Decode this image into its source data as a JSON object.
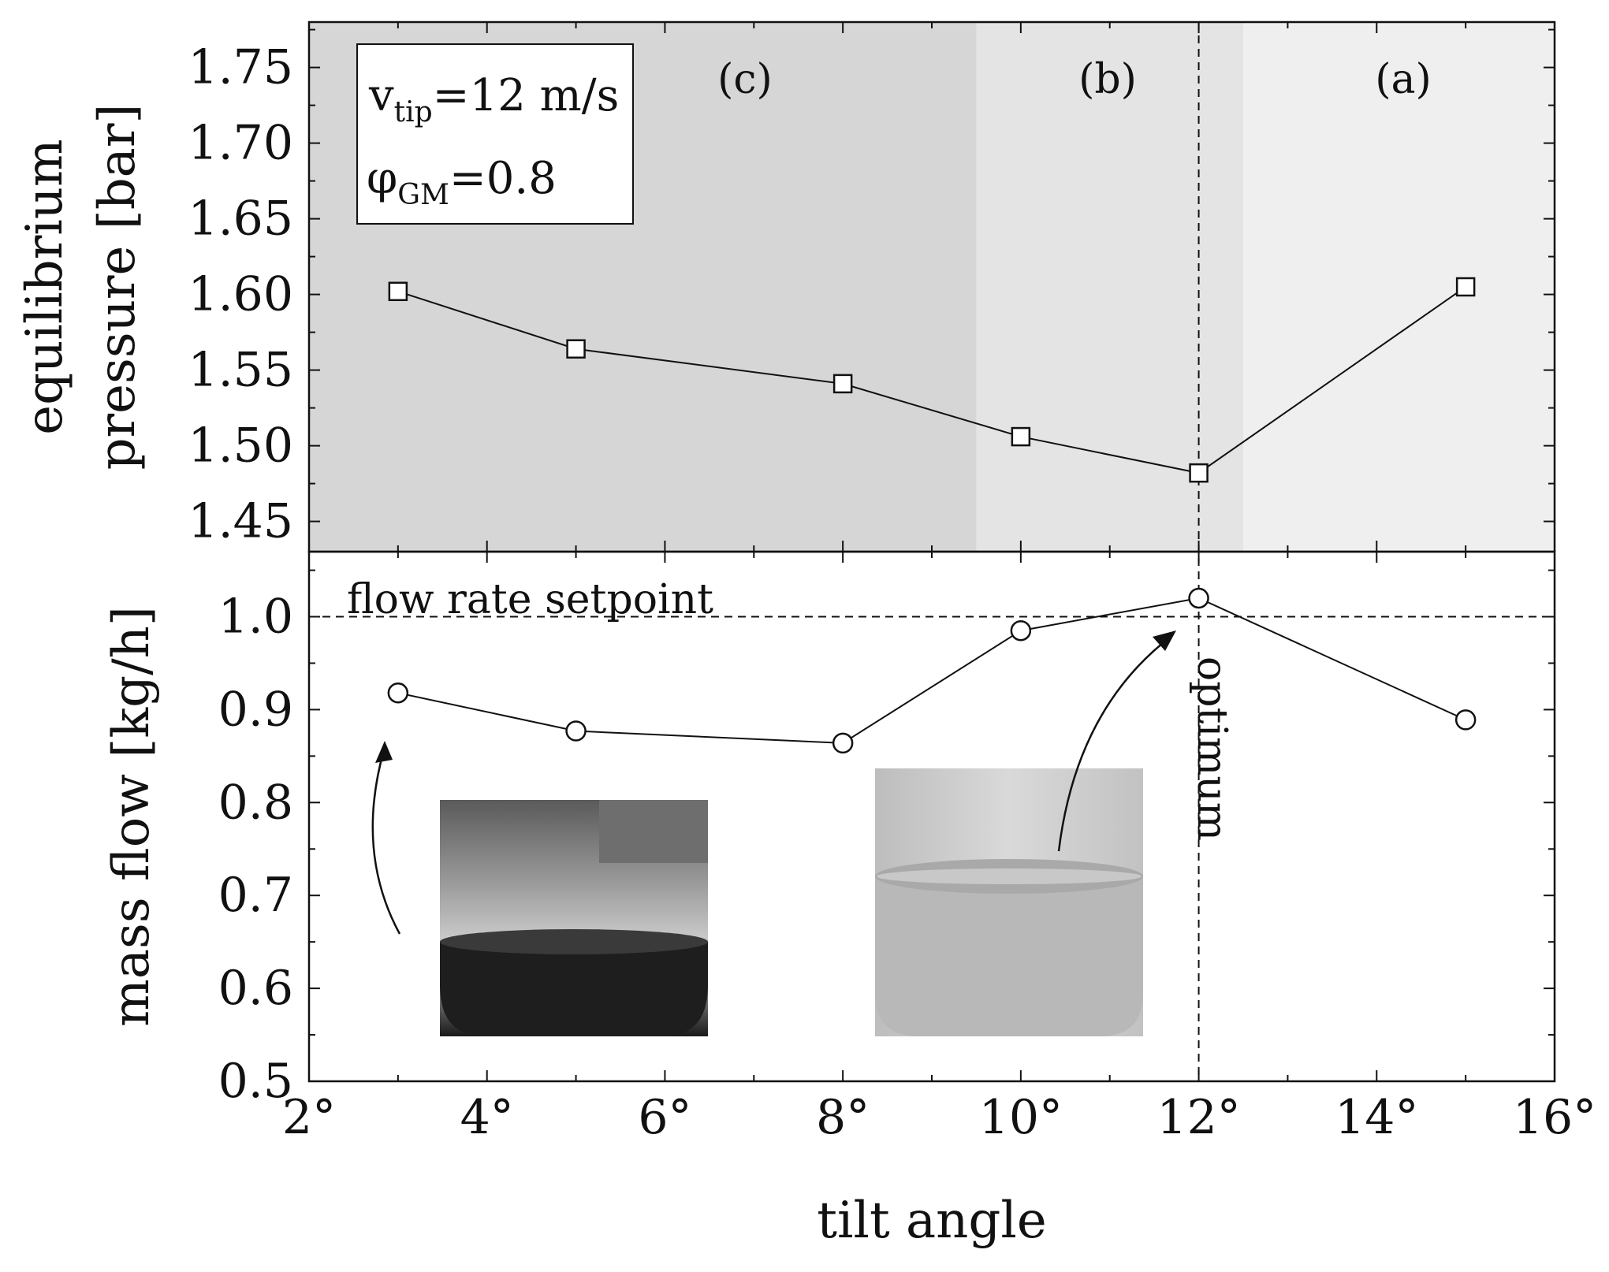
{
  "chart_data": [
    {
      "type": "line",
      "panel": "top",
      "ylabel_line1": "equilibrium",
      "ylabel_line2": "pressure [bar]",
      "ylim": [
        1.43,
        1.78
      ],
      "yticks": [
        "1.45",
        "1.50",
        "1.55",
        "1.60",
        "1.65",
        "1.70",
        "1.75"
      ],
      "ytick_values": [
        1.45,
        1.5,
        1.55,
        1.6,
        1.65,
        1.7,
        1.75
      ],
      "x": [
        3,
        5,
        8,
        10,
        12,
        15
      ],
      "values": [
        1.602,
        1.564,
        1.541,
        1.506,
        1.482,
        1.605
      ],
      "marker": "square",
      "regions": [
        {
          "label": "(c)",
          "from": 2,
          "to": 9.5,
          "color": "#d6d6d6"
        },
        {
          "label": "(b)",
          "from": 9.5,
          "to": 12.5,
          "color": "#e4e4e4"
        },
        {
          "label": "(a)",
          "from": 12.5,
          "to": 16,
          "color": "#efefef"
        }
      ],
      "info_box": {
        "line1_main": "v",
        "line1_sub": "tip",
        "line1_rest": "=12 m/s",
        "line2_main": "φ",
        "line2_sub": "GM",
        "line2_rest": "=0.8"
      }
    },
    {
      "type": "line",
      "panel": "bottom",
      "ylabel": "mass flow [kg/h]",
      "ylim": [
        0.5,
        1.07
      ],
      "yticks": [
        "0.5",
        "0.6",
        "0.7",
        "0.8",
        "0.9",
        "1.0"
      ],
      "ytick_values": [
        0.5,
        0.6,
        0.7,
        0.8,
        0.9,
        1.0
      ],
      "x": [
        3,
        5,
        8,
        10,
        12,
        15
      ],
      "values": [
        0.918,
        0.877,
        0.864,
        0.985,
        1.02,
        0.889
      ],
      "marker": "circle",
      "setpoint": 1.0,
      "setpoint_label": "flow rate setpoint",
      "optimum_x": 12,
      "optimum_label": "optimum"
    }
  ],
  "shared_x": {
    "xlabel": "tilt angle",
    "xlim": [
      2,
      16
    ],
    "xticks": [
      "2°",
      "4°",
      "6°",
      "8°",
      "10°",
      "12°",
      "14°",
      "16°"
    ],
    "xtick_values": [
      2,
      4,
      6,
      8,
      10,
      12,
      14,
      16
    ]
  },
  "colors": {
    "line": "#111111",
    "marker_fill": "#ffffff",
    "dark_liquid": "#1e1e1e",
    "clear_liquid": "#b8b8b8"
  }
}
